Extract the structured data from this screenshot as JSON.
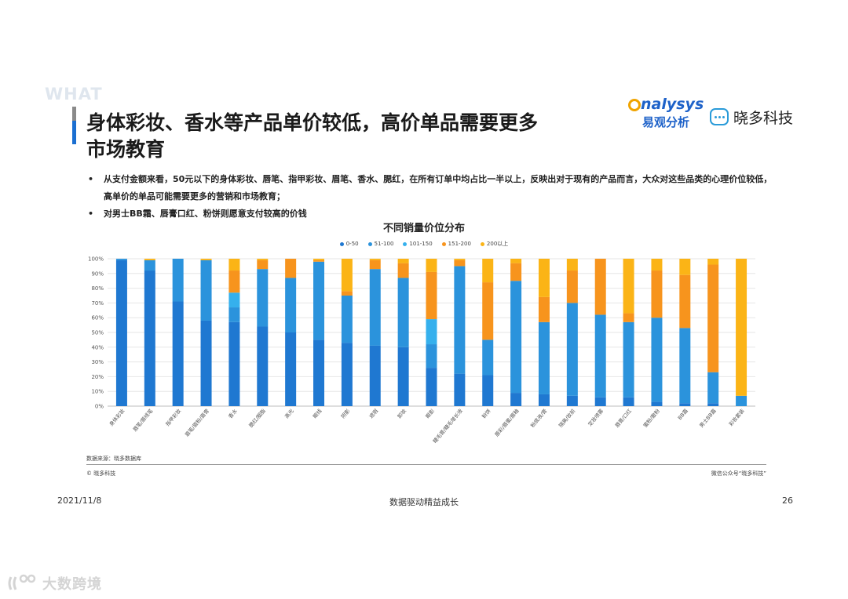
{
  "header": {
    "tag": "WHAT",
    "title_line1": "身体彩妆、香水等产品单价较低，高价单品需要更多",
    "title_line2": "市场教育",
    "logo_analysys_word": "nalysys",
    "logo_analysys_cn": "易观分析",
    "logo_xd_text": "晓多科技"
  },
  "bullets": [
    {
      "marker": "•",
      "text": "从支付金额来看，50元以下的身体彩妆、唇笔、指甲彩妆、眉笔、香水、腮红，在所有订单中均占比一半以上，反映出对于现有的产品而言，大众对这些品类的心理价位较低，高单价的单品可能需要更多的营销和市场教育；"
    },
    {
      "marker": "•",
      "text": "对男士BB霜、唇膏口红、粉饼则愿意支付较高的价钱"
    }
  ],
  "chart_data": {
    "type": "bar",
    "stacked": true,
    "percent": true,
    "title": "不同销量价位分布",
    "categories": [
      "身体彩妆",
      "唇笔/唇线笔",
      "指甲彩妆",
      "眉笔/眉粉/眉膏",
      "香水",
      "腮红/胭脂",
      "高光",
      "眼线",
      "阴影",
      "遮瑕",
      "卸妆",
      "眼影",
      "睫毛膏/睫毛增长液",
      "粉饼",
      "唇彩/唇蜜/唇釉",
      "粉底液/膏",
      "隔离/妆前",
      "定妆喷雾",
      "唇膏/口红",
      "蜜粉/散粉",
      "BB霜",
      "男士BB霜",
      "彩妆套装"
    ],
    "series": [
      {
        "name": "0-50",
        "color": "#1f78d1",
        "values": [
          99,
          92,
          71,
          58,
          57,
          54,
          50,
          45,
          43,
          41,
          40,
          26,
          22,
          21,
          9,
          8,
          7,
          6,
          6,
          3,
          2,
          2,
          0
        ]
      },
      {
        "name": "51-100",
        "color": "#2b93dc",
        "values": [
          1,
          7,
          29,
          41,
          10,
          39,
          37,
          53,
          32,
          52,
          47,
          16,
          73,
          24,
          76,
          49,
          63,
          56,
          51,
          57,
          51,
          21,
          7
        ]
      },
      {
        "name": "101-150",
        "color": "#35b0ed",
        "values": [
          0,
          0,
          0,
          0,
          10,
          0,
          0,
          0,
          0,
          0,
          0,
          17,
          0,
          0,
          0,
          0,
          0,
          0,
          0,
          0,
          0,
          0,
          0
        ]
      },
      {
        "name": "151-200",
        "color": "#f7941d",
        "values": [
          0,
          0,
          0,
          0,
          15,
          6,
          13,
          1,
          3,
          6,
          10,
          32,
          4,
          39,
          12,
          17,
          22,
          38,
          6,
          32,
          36,
          73,
          0
        ]
      },
      {
        "name": "200以上",
        "color": "#fbb416",
        "values": [
          0,
          1,
          0,
          1,
          8,
          1,
          0,
          1,
          22,
          1,
          3,
          9,
          1,
          16,
          3,
          26,
          8,
          0,
          37,
          8,
          11,
          4,
          93
        ]
      }
    ],
    "ylim": [
      0,
      100
    ],
    "yticks": [
      "0%",
      "10%",
      "20%",
      "30%",
      "40%",
      "50%",
      "60%",
      "70%",
      "80%",
      "90%",
      "100%"
    ],
    "xlabel": "",
    "ylabel": ""
  },
  "source": "数据来源：晓多数据库",
  "copyright": "© 晓多科技",
  "wechat": "微信公众号“晓多科技”",
  "footer": {
    "date": "2021/11/8",
    "center": "数据驱动精益成长",
    "page": "26"
  },
  "watermark": "大数跨境",
  "colors": {
    "title_bar_blue": "#1b6fd1",
    "brand_blue": "#1e62c9",
    "brand_orange": "#f0a400",
    "xd_blue": "#2a9bd9"
  }
}
